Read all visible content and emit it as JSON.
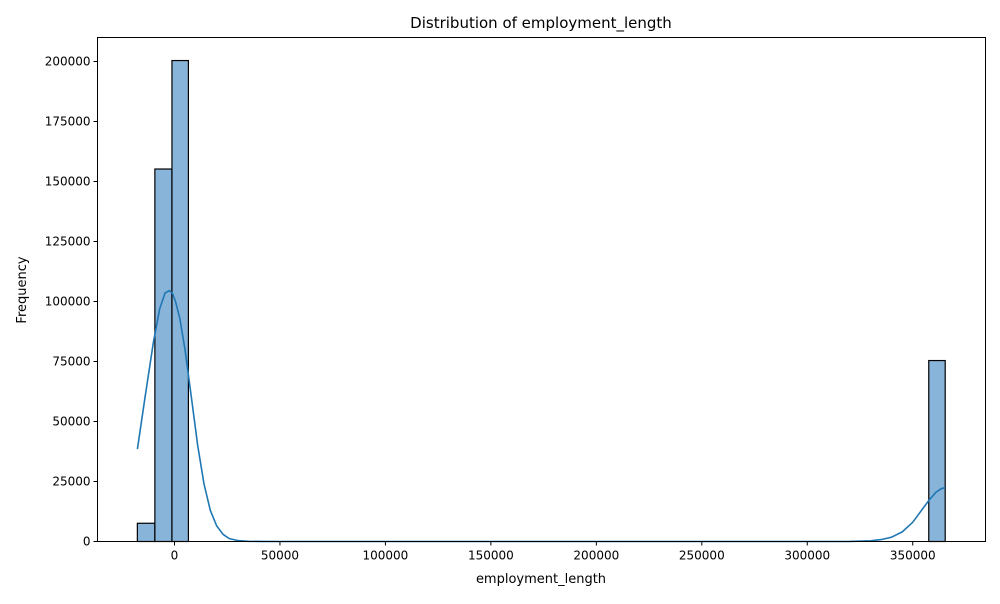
{
  "chart_data": {
    "type": "bar",
    "title": "Distribution of employment_length",
    "xlabel": "employment_length",
    "ylabel": "Frequency",
    "xlim": [
      -36500,
      384500
    ],
    "ylim": [
      0,
      210000
    ],
    "x_ticks": [
      0,
      50000,
      100000,
      150000,
      200000,
      250000,
      300000,
      350000
    ],
    "y_ticks": [
      0,
      25000,
      50000,
      75000,
      100000,
      125000,
      150000,
      175000,
      200000
    ],
    "grid": false,
    "bar_color": "#89b4d9",
    "bar_edge_color": "#000000",
    "kde_color": "#1f77b4",
    "bins": [
      {
        "x0": -17600,
        "x1": -9300,
        "value": 7600
      },
      {
        "x0": -9300,
        "x1": -1200,
        "value": 155200
      },
      {
        "x0": -1200,
        "x1": 6600,
        "value": 200400
      },
      {
        "x0": 357600,
        "x1": 365400,
        "value": 75400
      }
    ],
    "kde": {
      "x": [
        -17600,
        -14000,
        -10000,
        -7000,
        -4500,
        -2500,
        -1000,
        500,
        2500,
        5000,
        8000,
        11000,
        14000,
        17000,
        20000,
        23000,
        26000,
        30000,
        35000,
        40000,
        50000,
        100000,
        200000,
        300000,
        320000,
        330000,
        335000,
        340000,
        345000,
        350000,
        355000,
        358000,
        361000,
        363500,
        365400
      ],
      "y": [
        38500,
        60000,
        83000,
        97000,
        103500,
        104500,
        103500,
        100000,
        93000,
        80000,
        60000,
        40000,
        24000,
        13000,
        6500,
        3000,
        1200,
        400,
        100,
        30,
        0,
        0,
        0,
        0,
        50,
        300,
        800,
        1800,
        4000,
        8000,
        14000,
        17500,
        20500,
        22000,
        22400
      ]
    }
  }
}
